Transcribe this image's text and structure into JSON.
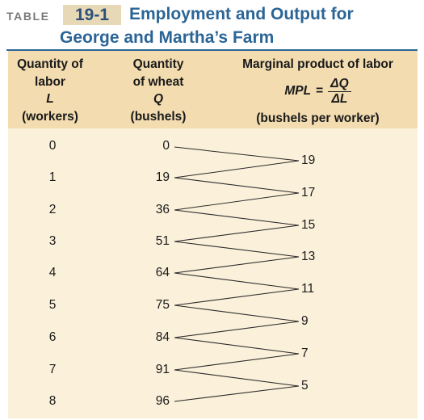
{
  "title": {
    "table_word": "TABLE",
    "number": "19-1",
    "line1": "Employment and Output for",
    "line2": "George and Martha’s Farm"
  },
  "headers": {
    "labor": [
      "Quantity of",
      "labor",
      "L",
      "(workers)"
    ],
    "wheat": [
      "Quantity",
      "of wheat",
      "Q",
      "(bushels)"
    ],
    "mpl": {
      "title": "Marginal product of labor",
      "formula_lhs": "MPL",
      "formula_eq": "=",
      "numerator": "ΔQ",
      "denominator": "ΔL",
      "unit": "(bushels per worker)"
    }
  },
  "rows": [
    {
      "labor": "0",
      "wheat": "0"
    },
    {
      "labor": "1",
      "wheat": "19"
    },
    {
      "labor": "2",
      "wheat": "36"
    },
    {
      "labor": "3",
      "wheat": "51"
    },
    {
      "labor": "4",
      "wheat": "64"
    },
    {
      "labor": "5",
      "wheat": "75"
    },
    {
      "labor": "6",
      "wheat": "84"
    },
    {
      "labor": "7",
      "wheat": "91"
    },
    {
      "labor": "8",
      "wheat": "96"
    }
  ],
  "marginal_products": [
    "19",
    "17",
    "15",
    "13",
    "11",
    "9",
    "7",
    "5"
  ],
  "colors": {
    "title_blue": "#2b6596",
    "header_bg": "#f2dcb0",
    "body_bg": "#fbf1da",
    "number_badge": "#e8d9b6"
  }
}
